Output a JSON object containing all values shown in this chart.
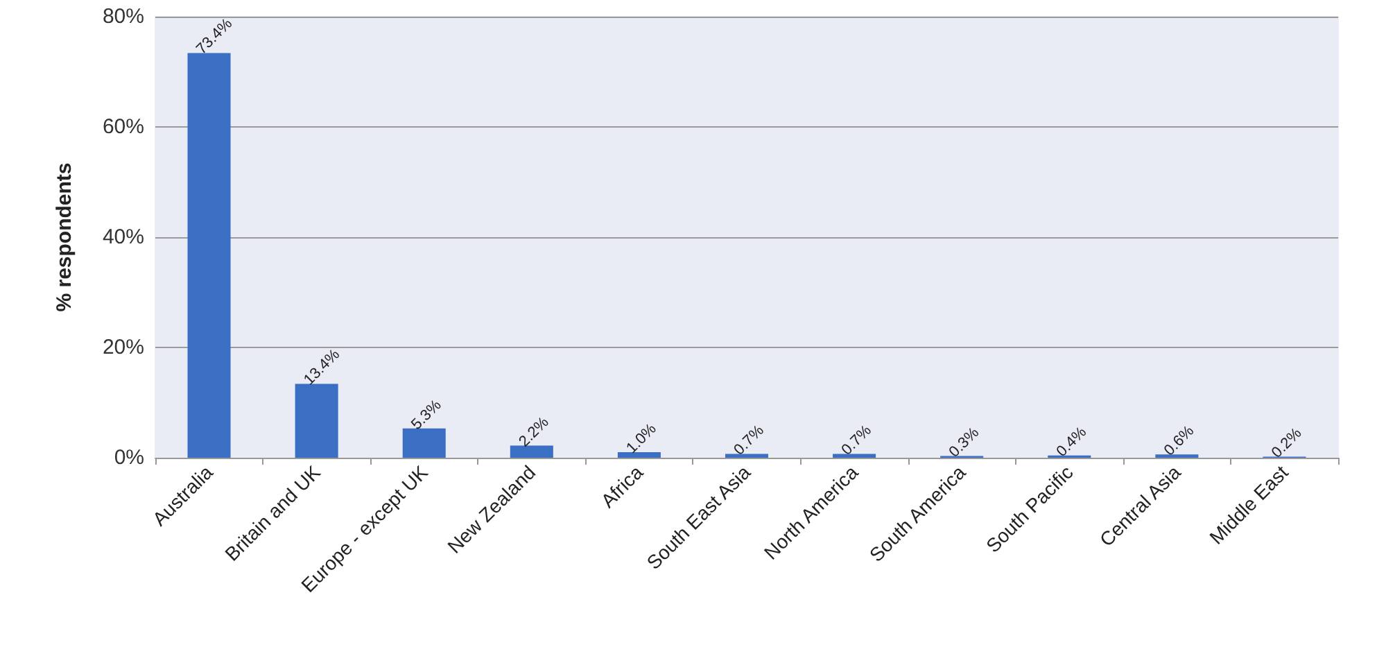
{
  "chart_data": {
    "type": "bar",
    "ylabel": "% respondents",
    "categories": [
      "Australia",
      "Britain and UK",
      "Europe - except UK",
      "New Zealand",
      "Africa",
      "South East Asia",
      "North America",
      "South America",
      "South Pacific",
      "Central Asia",
      "Middle East"
    ],
    "values": [
      73.4,
      13.4,
      5.3,
      2.2,
      1.0,
      0.7,
      0.7,
      0.3,
      0.4,
      0.6,
      0.2
    ],
    "value_labels": [
      "73.4%",
      "13.4%",
      "5.3%",
      "2.2%",
      "1.0%",
      "0.7%",
      "0.7%",
      "0.3%",
      "0.4%",
      "0.6%",
      "0.2%"
    ],
    "color": "#3a6fc4",
    "ylim": [
      0,
      80
    ],
    "yticks": [
      {
        "value": 0,
        "label": "0%"
      },
      {
        "value": 20,
        "label": "20%"
      },
      {
        "value": 40,
        "label": "40%"
      },
      {
        "value": 60,
        "label": "60%"
      },
      {
        "value": 80,
        "label": "80%"
      }
    ],
    "grid": "y"
  }
}
